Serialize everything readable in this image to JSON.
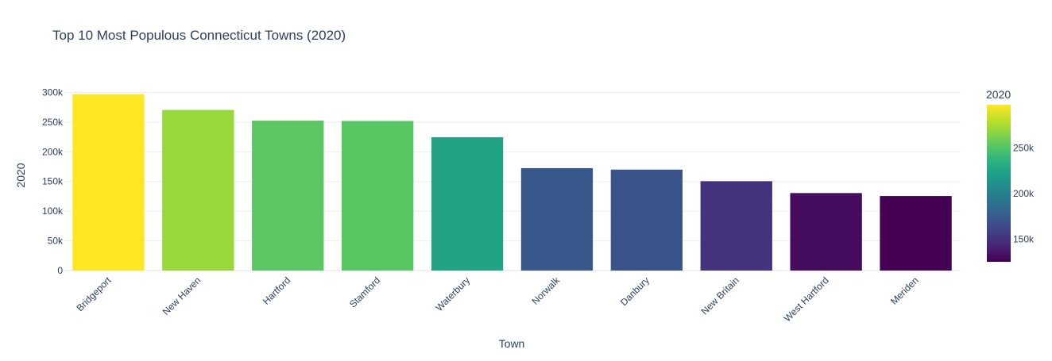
{
  "chart_data": {
    "type": "bar",
    "title": "Top 10 Most Populous Connecticut Towns (2020)",
    "xlabel": "Town",
    "ylabel": "2020",
    "categories": [
      "Bridgeport",
      "New Haven",
      "Hartford",
      "Stamford",
      "Waterbury",
      "Norwalk",
      "Danbury",
      "New Britain",
      "West Hartford",
      "Meriden"
    ],
    "values": [
      297000,
      270500,
      252500,
      252000,
      224500,
      172500,
      170000,
      150500,
      130500,
      125500
    ],
    "ylim": [
      0,
      310000
    ],
    "yticks": [
      0,
      50000,
      100000,
      150000,
      200000,
      250000,
      300000
    ],
    "ytick_labels": [
      "0",
      "50k",
      "100k",
      "150k",
      "200k",
      "250k",
      "300k"
    ],
    "grid": true,
    "colorscale": "viridis",
    "colorbar": {
      "title": "2020",
      "range": [
        125500,
        297000
      ],
      "ticks": [
        150000,
        200000,
        250000
      ],
      "tick_labels": [
        "150k",
        "200k",
        "250k"
      ]
    }
  }
}
